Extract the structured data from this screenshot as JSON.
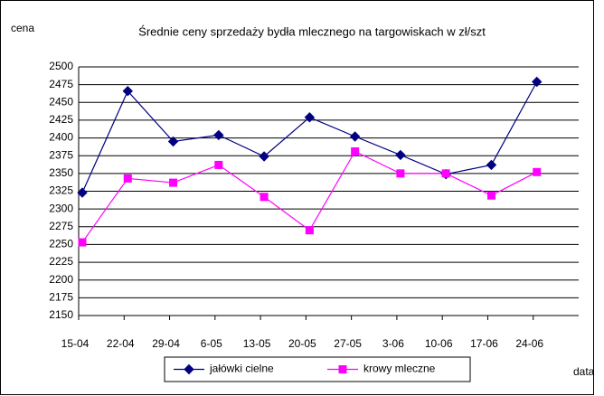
{
  "chart_data": {
    "type": "line",
    "title": "Średnie ceny sprzedaży bydła mlecznego na targowiskach w zł/szt",
    "y_label": "cena",
    "x_label": "data",
    "categories": [
      "15-04",
      "22-04",
      "29-04",
      "6-05",
      "13-05",
      "20-05",
      "27-05",
      "3-06",
      "10-06",
      "17-06",
      "24-06"
    ],
    "series": [
      {
        "name": "jałówki cielne",
        "color": "#000080",
        "marker": "diamond",
        "values": [
          2323,
          2466,
          2395,
          2404,
          2374,
          2429,
          2402,
          2376,
          2349,
          2362,
          2479
        ]
      },
      {
        "name": "krowy mleczne",
        "color": "#ff00ff",
        "marker": "square",
        "values": [
          2253,
          2343,
          2337,
          2362,
          2317,
          2270,
          2381,
          2350,
          2350,
          2319,
          2352
        ]
      }
    ],
    "ylim": [
      2150,
      2500
    ],
    "yticks": [
      2150,
      2175,
      2200,
      2225,
      2250,
      2275,
      2300,
      2325,
      2350,
      2375,
      2400,
      2425,
      2450,
      2475,
      2500
    ],
    "grid": true,
    "legend": "bottom"
  }
}
